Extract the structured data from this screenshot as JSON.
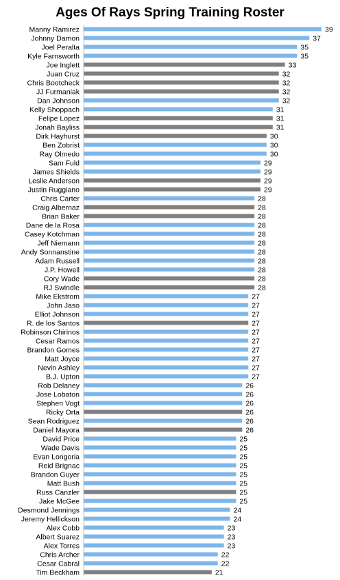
{
  "chart_data": {
    "type": "bar",
    "orientation": "horizontal",
    "title": "Ages Of Rays Spring Training Roster",
    "xlabel": "",
    "ylabel": "",
    "xlim": [
      0,
      40
    ],
    "grid": false,
    "legend": "none",
    "colors": {
      "light": "#7EB6E8",
      "dark": "#7F7F7F"
    },
    "categories": [
      "Manny Ramirez",
      "Johnny Damon",
      "Joel Peralta",
      "Kyle Farnsworth",
      "Joe Inglett",
      "Juan Cruz",
      "Chris Bootcheck",
      "JJ Furmaniak",
      "Dan Johnson",
      "Kelly Shoppach",
      "Felipe Lopez",
      "Jonah Bayliss",
      "Dirk Hayhurst",
      "Ben Zobrist",
      "Ray Olmedo",
      "Sam Fuld",
      "James Shields",
      "Leslie Anderson",
      "Justin Ruggiano",
      "Chris Carter",
      "Craig Albernaz",
      "Brian Baker",
      "Dane de la Rosa",
      "Casey Kotchman",
      "Jeff Niemann",
      "Andy Sonnanstine",
      "Adam Russell",
      "J.P. Howell",
      "Cory Wade",
      "RJ Swindle",
      "Mike Ekstrom",
      "John Jaso",
      "Elliot Johnson",
      "R. de los Santos",
      "Robinson Chirinos",
      "Cesar Ramos",
      "Brandon Gomes",
      "Matt Joyce",
      "Nevin Ashley",
      "B.J. Upton",
      "Rob Delaney",
      "Jose Lobaton",
      "Stephen Vogt",
      "Ricky Orta",
      "Sean Rodriguez",
      "Daniel Mayora",
      "David Price",
      "Wade Davis",
      "Evan Longoria",
      "Reid Brignac",
      "Brandon Guyer",
      "Matt Bush",
      "Russ Canzler",
      "Jake McGee",
      "Desmond Jennings",
      "Jeremy Hellickson",
      "Alex Cobb",
      "Albert Suarez",
      "Alex Torres",
      "Chris Archer",
      "Cesar Cabral",
      "Tim Beckham"
    ],
    "values": [
      39,
      37,
      35,
      35,
      33,
      32,
      32,
      32,
      32,
      31,
      31,
      31,
      30,
      30,
      30,
      29,
      29,
      29,
      29,
      28,
      28,
      28,
      28,
      28,
      28,
      28,
      28,
      28,
      28,
      28,
      27,
      27,
      27,
      27,
      27,
      27,
      27,
      27,
      27,
      27,
      26,
      26,
      26,
      26,
      26,
      26,
      25,
      25,
      25,
      25,
      25,
      25,
      25,
      25,
      24,
      24,
      23,
      23,
      23,
      22,
      22,
      21
    ],
    "bar_colors": [
      "light",
      "light",
      "light",
      "light",
      "dark",
      "dark",
      "dark",
      "dark",
      "light",
      "light",
      "dark",
      "dark",
      "dark",
      "light",
      "light",
      "light",
      "light",
      "dark",
      "dark",
      "light",
      "dark",
      "dark",
      "light",
      "light",
      "light",
      "light",
      "light",
      "light",
      "dark",
      "dark",
      "light",
      "light",
      "light",
      "dark",
      "light",
      "light",
      "light",
      "light",
      "light",
      "light",
      "light",
      "light",
      "light",
      "dark",
      "light",
      "dark",
      "light",
      "light",
      "light",
      "light",
      "light",
      "light",
      "dark",
      "light",
      "light",
      "light",
      "light",
      "light",
      "light",
      "light",
      "light",
      "dark"
    ]
  }
}
